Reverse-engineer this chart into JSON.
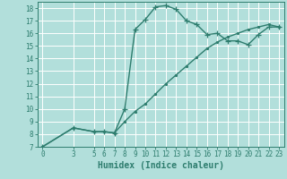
{
  "xlabel": "Humidex (Indice chaleur)",
  "line1_x": [
    0,
    3,
    5,
    6,
    7,
    8,
    9,
    10,
    11,
    12,
    13,
    14,
    15,
    16,
    17,
    18,
    19,
    20,
    21,
    22,
    23
  ],
  "line1_y": [
    7,
    8.5,
    8.2,
    8.2,
    8.1,
    10.0,
    16.3,
    17.1,
    18.1,
    18.2,
    17.9,
    17.0,
    16.7,
    15.9,
    16.0,
    15.4,
    15.4,
    15.1,
    15.9,
    16.5,
    16.5
  ],
  "line2_x": [
    0,
    3,
    5,
    6,
    7,
    8,
    9,
    10,
    11,
    12,
    13,
    14,
    15,
    16,
    17,
    18,
    19,
    20,
    21,
    22,
    23
  ],
  "line2_y": [
    7,
    8.5,
    8.2,
    8.2,
    8.1,
    9.0,
    9.8,
    10.4,
    11.2,
    12.0,
    12.7,
    13.4,
    14.1,
    14.8,
    15.3,
    15.7,
    16.0,
    16.3,
    16.5,
    16.7,
    16.5
  ],
  "line_color": "#2e7d6e",
  "background_color": "#b2dfdb",
  "grid_color": "#ffffff",
  "xlim": [
    -0.5,
    23.5
  ],
  "ylim": [
    7,
    18.5
  ],
  "xticks": [
    0,
    3,
    5,
    6,
    7,
    8,
    9,
    10,
    11,
    12,
    13,
    14,
    15,
    16,
    17,
    18,
    19,
    20,
    21,
    22,
    23
  ],
  "yticks": [
    7,
    8,
    9,
    10,
    11,
    12,
    13,
    14,
    15,
    16,
    17,
    18
  ],
  "marker1": "+",
  "marker2": ".",
  "markersize1": 4,
  "markersize2": 3,
  "linewidth": 1.0,
  "tick_fontsize": 5.5,
  "xlabel_fontsize": 7
}
